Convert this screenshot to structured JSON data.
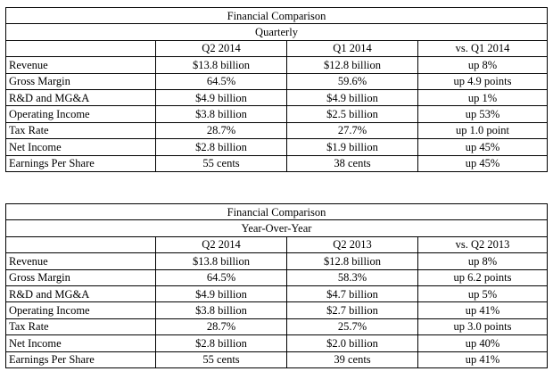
{
  "tables": [
    {
      "title": "Financial Comparison",
      "subtitle": "Quarterly",
      "columns": [
        "",
        "Q2 2014",
        "Q1 2014",
        "vs. Q1 2014"
      ],
      "rows": [
        [
          "Revenue",
          "$13.8 billion",
          "$12.8 billion",
          "up 8%"
        ],
        [
          "Gross Margin",
          "64.5%",
          "59.6%",
          "up 4.9 points"
        ],
        [
          "R&D and MG&A",
          "$4.9 billion",
          "$4.9 billion",
          "up 1%"
        ],
        [
          "Operating Income",
          "$3.8 billion",
          "$2.5 billion",
          "up 53%"
        ],
        [
          "Tax Rate",
          "28.7%",
          "27.7%",
          "up 1.0 point"
        ],
        [
          "Net Income",
          "$2.8 billion",
          "$1.9 billion",
          "up 45%"
        ],
        [
          "Earnings Per Share",
          "55 cents",
          "38 cents",
          "up 45%"
        ]
      ]
    },
    {
      "title": "Financial Comparison",
      "subtitle": "Year-Over-Year",
      "columns": [
        "",
        "Q2 2014",
        "Q2 2013",
        "vs. Q2 2013"
      ],
      "rows": [
        [
          "Revenue",
          "$13.8 billion",
          "$12.8 billion",
          "up 8%"
        ],
        [
          "Gross Margin",
          "64.5%",
          "58.3%",
          "up 6.2 points"
        ],
        [
          "R&D and MG&A",
          "$4.9 billion",
          "$4.7 billion",
          "up 5%"
        ],
        [
          "Operating Income",
          "$3.8 billion",
          "$2.7 billion",
          "up 41%"
        ],
        [
          "Tax Rate",
          "28.7%",
          "25.7%",
          "up 3.0 points"
        ],
        [
          "Net Income",
          "$2.8 billion",
          "$2.0 billion",
          "up 40%"
        ],
        [
          "Earnings Per Share",
          "55 cents",
          "39 cents",
          "up 41%"
        ]
      ]
    }
  ]
}
